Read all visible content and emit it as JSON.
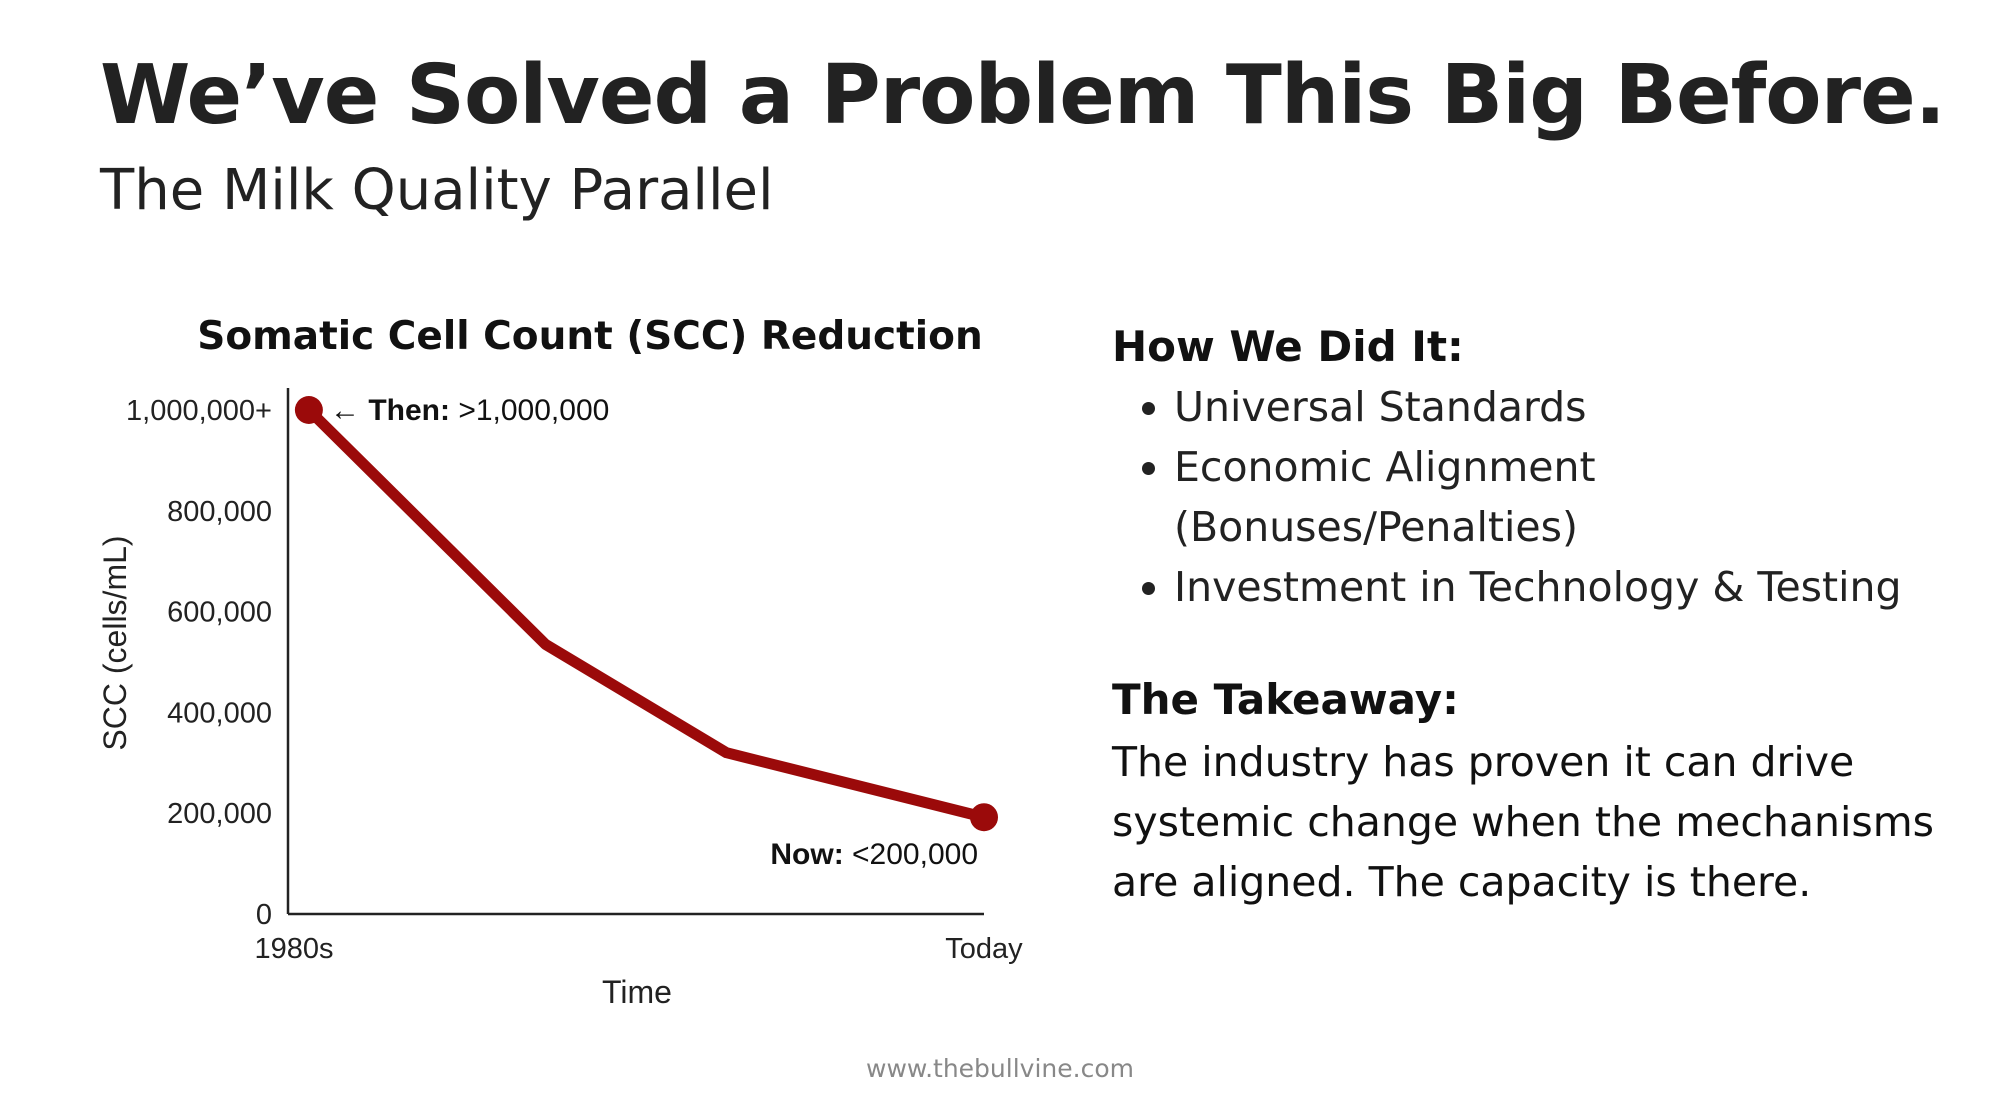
{
  "header": {
    "title": "We’ve Solved a Problem This Big Before.",
    "subtitle": "The Milk Quality Parallel"
  },
  "chart_data": {
    "type": "line",
    "title": "Somatic Cell Count (SCC) Reduction",
    "xlabel": "Time",
    "ylabel": "SCC (cells/mL)",
    "x_tick_labels": [
      "1980s",
      "Today"
    ],
    "y_ticks": [
      0,
      200000,
      400000,
      600000,
      800000,
      1000000
    ],
    "y_tick_labels": [
      "0",
      "200,000",
      "400,000",
      "600,000",
      "800,000",
      "1,000,000+"
    ],
    "ylim": [
      0,
      1000000
    ],
    "grid": false,
    "series": [
      {
        "name": "SCC",
        "color": "#9b0a0a",
        "x": [
          0.03,
          0.37,
          0.63,
          1.0
        ],
        "values": [
          1000000,
          535000,
          320000,
          192000
        ]
      }
    ],
    "annotations": [
      {
        "bold": "Then:",
        "text": " >1,000,000",
        "arrow": "←"
      },
      {
        "bold": "Now:",
        "text": " <200,000"
      }
    ]
  },
  "right": {
    "how_heading": "How We Did It:",
    "bullets": [
      "Universal Standards",
      "Economic Alignment (Bonuses/Penalties)",
      "Investment in Technology & Testing"
    ],
    "takeaway_heading": "The Takeaway:",
    "takeaway_text": "The industry has proven it can drive systemic change when the mechanisms are aligned. The capacity is there."
  },
  "footer": {
    "url": "www.thebullvine.com"
  }
}
